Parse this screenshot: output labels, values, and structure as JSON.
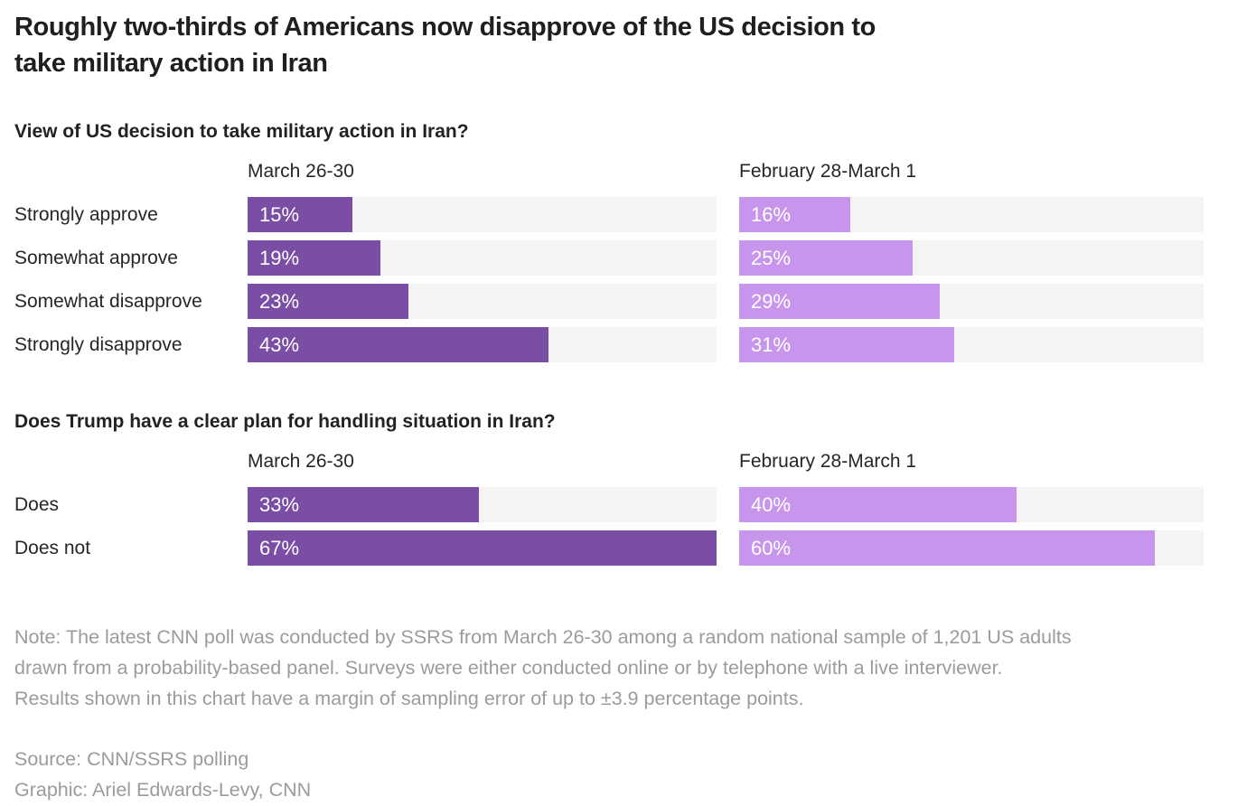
{
  "title_lines": [
    "Roughly two-thirds of Americans now disapprove of the US decision to",
    "take military action in Iran"
  ],
  "colors": {
    "bar_recent": "#7a4ea5",
    "bar_previous": "#c795ec",
    "track": "#f4f4f4",
    "title_text": "#1f1f1f",
    "body_text": "#262626",
    "muted_text": "#9b9b9b",
    "value_text": "#ffffff"
  },
  "chart_data": [
    {
      "type": "bar",
      "title": "View of US decision to take military action in Iran?",
      "categories": [
        "Strongly approve",
        "Somewhat approve",
        "Somewhat disapprove",
        "Strongly disapprove"
      ],
      "series": [
        {
          "name": "March 26-30",
          "values": [
            15,
            19,
            23,
            43
          ]
        },
        {
          "name": "February 28-March 1",
          "values": [
            16,
            25,
            29,
            31
          ]
        }
      ],
      "value_suffix": "%",
      "xlim": [
        0,
        67
      ],
      "grid": false,
      "legend_position": "column-headers",
      "orientation": "horizontal"
    },
    {
      "type": "bar",
      "title": "Does Trump have a clear plan for handling situation in Iran?",
      "categories": [
        "Does",
        "Does not"
      ],
      "series": [
        {
          "name": "March 26-30",
          "values": [
            33,
            67
          ]
        },
        {
          "name": "February 28-March 1",
          "values": [
            40,
            60
          ]
        }
      ],
      "value_suffix": "%",
      "xlim": [
        0,
        67
      ],
      "grid": false,
      "legend_position": "column-headers",
      "orientation": "horizontal"
    }
  ],
  "note": {
    "lines": [
      "Note: The latest CNN poll was conducted by SSRS from March 26-30 among a random national sample of 1,201 US adults",
      "drawn from a probability-based panel. Surveys were either conducted online or by telephone with a live interviewer.",
      "Results shown in this chart have a margin of sampling error of up to ±3.9 percentage points."
    ]
  },
  "source": "Source: CNN/SSRS polling",
  "credit": "Graphic: Ariel Edwards-Levy, CNN"
}
